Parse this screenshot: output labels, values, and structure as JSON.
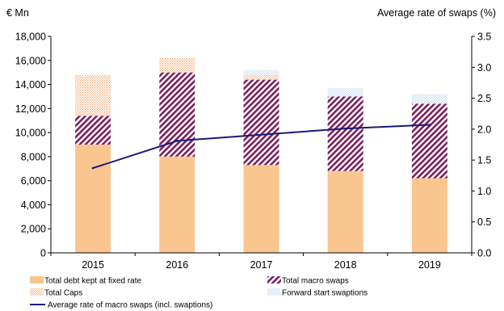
{
  "chart_data": {
    "type": "bar",
    "stacked": true,
    "categories": [
      "2015",
      "2016",
      "2017",
      "2018",
      "2019"
    ],
    "left_axis": {
      "title": "€ Mn",
      "ylim": [
        0,
        18000
      ],
      "ticks": [
        0,
        2000,
        4000,
        6000,
        8000,
        10000,
        12000,
        14000,
        16000,
        18000
      ],
      "tick_labels": [
        "0",
        "2,000",
        "4,000",
        "6,000",
        "8,000",
        "10,000",
        "12,000",
        "14,000",
        "16,000",
        "18,000"
      ]
    },
    "right_axis": {
      "title": "Average rate of swaps (%)",
      "ylim": [
        0,
        3.5
      ],
      "ticks": [
        0,
        0.5,
        1,
        1.5,
        2,
        2.5,
        3,
        3.5
      ],
      "tick_labels": [
        "0.0",
        "0.5",
        "1.0",
        "1.5",
        "2.0",
        "2.5",
        "3.0",
        "3.5"
      ]
    },
    "series": [
      {
        "name": "Total debt kept at fixed rate",
        "kind": "bar",
        "axis": "left",
        "pattern": "solid",
        "color": "#fac690",
        "values": [
          9000,
          8000,
          7300,
          6800,
          6200
        ]
      },
      {
        "name": "Total macro swaps",
        "kind": "bar",
        "axis": "left",
        "pattern": "diagonal-hatch",
        "color": "#7b1f5b",
        "values": [
          2400,
          7000,
          7100,
          6200,
          6200
        ]
      },
      {
        "name": "Total Caps",
        "kind": "bar",
        "axis": "left",
        "pattern": "dotted",
        "color": "#f2a063",
        "values": [
          3400,
          1200,
          400,
          0,
          0
        ]
      },
      {
        "name": "Forward start swaptions",
        "kind": "bar",
        "axis": "left",
        "pattern": "light-dotted",
        "color": "#b7d0ec",
        "values": [
          0,
          0,
          400,
          700,
          800
        ]
      },
      {
        "name": "Average rate of macro swaps (incl. swaptions)",
        "kind": "line",
        "axis": "right",
        "color": "#1a1a7a",
        "values": [
          1.37,
          1.81,
          1.91,
          2.01,
          2.07
        ]
      }
    ],
    "legend_position": "bottom",
    "grid": false
  }
}
